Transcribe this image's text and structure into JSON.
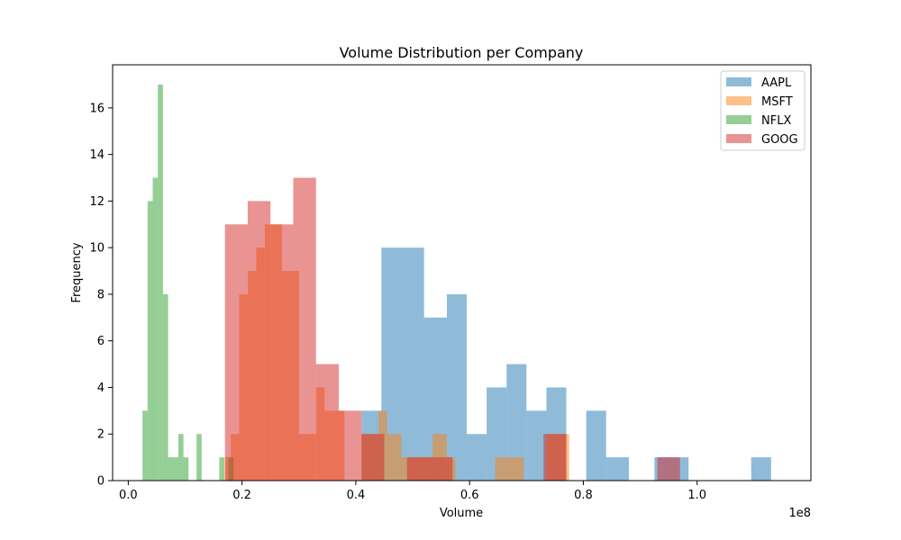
{
  "chart_data": {
    "type": "bar",
    "title": "Volume Distribution per Company",
    "xlabel": "Volume",
    "ylabel": "Frequency",
    "x_offset_label": "1e8",
    "xlim": [
      -0.0275,
      1.2
    ],
    "ylim": [
      0,
      17.85
    ],
    "x_ticks": [
      0.0,
      0.2,
      0.4,
      0.6,
      0.8,
      1.0
    ],
    "x_tick_labels": [
      "0.0",
      "0.2",
      "0.4",
      "0.6",
      "0.8",
      "1.0"
    ],
    "y_ticks": [
      0,
      2,
      4,
      6,
      8,
      10,
      12,
      14,
      16
    ],
    "y_tick_labels": [
      "0",
      "2",
      "4",
      "6",
      "8",
      "10",
      "12",
      "14",
      "16"
    ],
    "grid": false,
    "legend_position": "top-right",
    "series": [
      {
        "name": "AAPL",
        "color": "#1f77b4",
        "opacity": 0.5,
        "bins": [
          {
            "x0": 0.41,
            "x1": 0.445,
            "count": 3
          },
          {
            "x0": 0.445,
            "x1": 0.52,
            "count": 10
          },
          {
            "x0": 0.52,
            "x1": 0.56,
            "count": 7
          },
          {
            "x0": 0.56,
            "x1": 0.595,
            "count": 8
          },
          {
            "x0": 0.595,
            "x1": 0.63,
            "count": 2
          },
          {
            "x0": 0.63,
            "x1": 0.665,
            "count": 4
          },
          {
            "x0": 0.665,
            "x1": 0.7,
            "count": 5
          },
          {
            "x0": 0.7,
            "x1": 0.735,
            "count": 3
          },
          {
            "x0": 0.735,
            "x1": 0.77,
            "count": 4
          },
          {
            "x0": 0.77,
            "x1": 0.805,
            "count": 0
          },
          {
            "x0": 0.805,
            "x1": 0.84,
            "count": 3
          },
          {
            "x0": 0.84,
            "x1": 0.88,
            "count": 1
          },
          {
            "x0": 0.925,
            "x1": 0.985,
            "count": 1
          },
          {
            "x0": 1.095,
            "x1": 1.13,
            "count": 1
          }
        ]
      },
      {
        "name": "MSFT",
        "color": "#ff7f0e",
        "opacity": 0.5,
        "bins": [
          {
            "x0": 0.17,
            "x1": 0.18,
            "count": 1
          },
          {
            "x0": 0.18,
            "x1": 0.195,
            "count": 2
          },
          {
            "x0": 0.195,
            "x1": 0.21,
            "count": 8
          },
          {
            "x0": 0.21,
            "x1": 0.225,
            "count": 9
          },
          {
            "x0": 0.225,
            "x1": 0.24,
            "count": 10
          },
          {
            "x0": 0.24,
            "x1": 0.27,
            "count": 11
          },
          {
            "x0": 0.27,
            "x1": 0.3,
            "count": 9
          },
          {
            "x0": 0.3,
            "x1": 0.33,
            "count": 2
          },
          {
            "x0": 0.33,
            "x1": 0.345,
            "count": 4
          },
          {
            "x0": 0.345,
            "x1": 0.38,
            "count": 3
          },
          {
            "x0": 0.38,
            "x1": 0.41,
            "count": 0
          },
          {
            "x0": 0.41,
            "x1": 0.44,
            "count": 2
          },
          {
            "x0": 0.44,
            "x1": 0.455,
            "count": 3
          },
          {
            "x0": 0.455,
            "x1": 0.48,
            "count": 2
          },
          {
            "x0": 0.48,
            "x1": 0.51,
            "count": 1
          },
          {
            "x0": 0.51,
            "x1": 0.535,
            "count": 1
          },
          {
            "x0": 0.535,
            "x1": 0.56,
            "count": 2
          },
          {
            "x0": 0.56,
            "x1": 0.575,
            "count": 1
          },
          {
            "x0": 0.645,
            "x1": 0.695,
            "count": 1
          },
          {
            "x0": 0.735,
            "x1": 0.775,
            "count": 2
          }
        ]
      },
      {
        "name": "NFLX",
        "color": "#2ca02c",
        "opacity": 0.5,
        "bins": [
          {
            "x0": 0.025,
            "x1": 0.034,
            "count": 3
          },
          {
            "x0": 0.034,
            "x1": 0.043,
            "count": 12
          },
          {
            "x0": 0.043,
            "x1": 0.052,
            "count": 13
          },
          {
            "x0": 0.052,
            "x1": 0.061,
            "count": 17
          },
          {
            "x0": 0.061,
            "x1": 0.07,
            "count": 8
          },
          {
            "x0": 0.07,
            "x1": 0.079,
            "count": 1
          },
          {
            "x0": 0.079,
            "x1": 0.088,
            "count": 1
          },
          {
            "x0": 0.088,
            "x1": 0.097,
            "count": 2
          },
          {
            "x0": 0.097,
            "x1": 0.106,
            "count": 1
          },
          {
            "x0": 0.12,
            "x1": 0.129,
            "count": 2
          },
          {
            "x0": 0.16,
            "x1": 0.169,
            "count": 1
          },
          {
            "x0": 0.176,
            "x1": 0.185,
            "count": 1
          }
        ]
      },
      {
        "name": "GOOG",
        "color": "#d62728",
        "opacity": 0.5,
        "bins": [
          {
            "x0": 0.17,
            "x1": 0.21,
            "count": 11
          },
          {
            "x0": 0.21,
            "x1": 0.25,
            "count": 12
          },
          {
            "x0": 0.25,
            "x1": 0.29,
            "count": 11
          },
          {
            "x0": 0.29,
            "x1": 0.33,
            "count": 13
          },
          {
            "x0": 0.33,
            "x1": 0.37,
            "count": 5
          },
          {
            "x0": 0.37,
            "x1": 0.41,
            "count": 3
          },
          {
            "x0": 0.41,
            "x1": 0.45,
            "count": 2
          },
          {
            "x0": 0.49,
            "x1": 0.53,
            "count": 1
          },
          {
            "x0": 0.53,
            "x1": 0.57,
            "count": 1
          },
          {
            "x0": 0.73,
            "x1": 0.77,
            "count": 2
          },
          {
            "x0": 0.93,
            "x1": 0.97,
            "count": 1
          }
        ]
      }
    ]
  }
}
